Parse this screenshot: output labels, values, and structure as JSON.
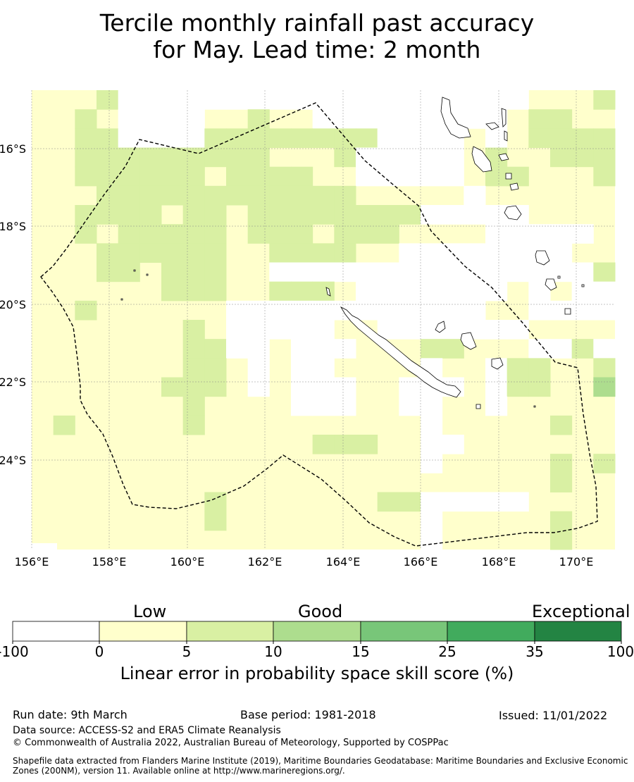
{
  "title": {
    "line1": "Tercile monthly rainfall past accuracy",
    "line2": "for May. Lead time: 2 month"
  },
  "map": {
    "lon_labels": [
      "156°E",
      "158°E",
      "160°E",
      "162°E",
      "164°E",
      "166°E",
      "168°E",
      "170°E"
    ],
    "lat_labels": [
      "16°S",
      "18°S",
      "20°S",
      "22°S",
      "24°S"
    ],
    "boundary_style": "dashed",
    "ocean_color": "#ffffff",
    "land_color": "#ffffff"
  },
  "colorbar": {
    "category_labels": [
      "Low",
      "Good",
      "Exceptional"
    ],
    "ticks": [
      "-100",
      "0",
      "5",
      "10",
      "15",
      "25",
      "35",
      "100"
    ],
    "colors": [
      "#ffffff",
      "#ffffcc",
      "#d9f0a3",
      "#addd8e",
      "#78c679",
      "#41ab5d",
      "#238443"
    ],
    "title": "Linear error in probability space skill score (%)"
  },
  "footer": {
    "run_date": "Run date: 9th March",
    "base_period": "Base period: 1981-2018",
    "issued": "Issued: 11/01/2022",
    "data_source": "Data source: ACCESS-S2 and ERA5 Climate Reanalysis",
    "copyright": "© Commonwealth of Australia 2022, Australian Bureau of Meteorology, Supported by COSPPac",
    "shapefile": "Shapefile data extracted from Flanders Marine Institute (2019), Maritime Boundaries Geodatabase: Maritime Boundaries and Exclusive Economic Zones (200NM), version 11. Available online at http://www.marineregions.org/."
  }
}
